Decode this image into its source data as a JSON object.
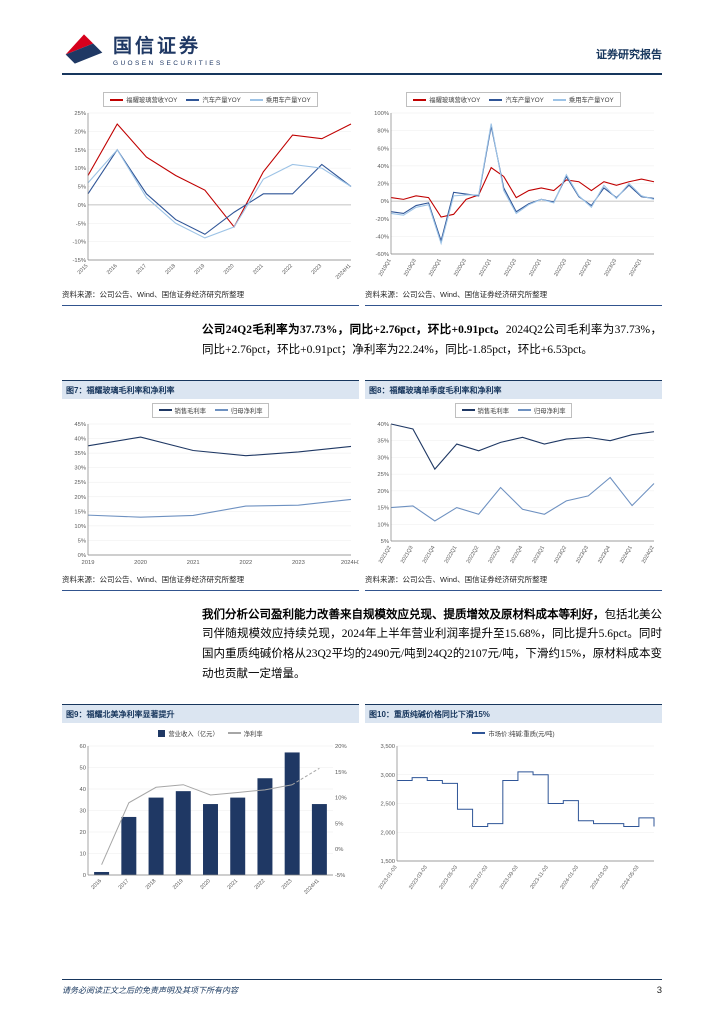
{
  "header": {
    "brand_cn": "国信证券",
    "brand_en": "GUOSEN SECURITIES",
    "report_type": "证券研究报告"
  },
  "source_note": "资料来源：公司公告、Wind、国信证券经济研究所整理",
  "figures": {
    "fig7_title": "图7：福耀玻璃毛利率和净利率",
    "fig8_title": "图8：福耀玻璃单季度毛利率和净利率",
    "fig9_title": "图9：福耀北美净利率显著提升",
    "fig10_title": "图10：重质纯碱价格同比下滑15%"
  },
  "paragraphs": [
    {
      "bold": "公司24Q2毛利率为37.73%，同比+2.76pct，环比+0.91pct。",
      "regular": "2024Q2公司毛利率为37.73%，同比+2.76pct，环比+0.91pct；净利率为22.24%，同比-1.85pct，环比+6.53pct。"
    },
    {
      "bold": "我们分析公司盈利能力改善来自规模效应兑现、提质增效及原材料成本等利好，",
      "regular": "包括北美公司伴随规模效应持续兑现，2024年上半年营业利润率提升至15.68%，同比提升5.6pct。同时国内重质纯碱价格从23Q2平均的2490元/吨到24Q2的2107元/吨，下滑约15%，原材料成本变动也贡献一定增量。"
    }
  ],
  "footer": {
    "disclaimer": "请务必阅读正文之后的免责声明及其项下所有内容",
    "page_number": "3"
  },
  "colors": {
    "brand_navy": "#1f3864",
    "title_bar_bg": "#dbe5f1",
    "red_series": "#c00000",
    "blue_series": "#2f5597",
    "light_blue_series": "#9dc3e6",
    "navy_series": "#1f3864",
    "mid_blue_series": "#6e91c1",
    "gray_series": "#a6a6a6"
  },
  "chart_data": [
    {
      "id": "rev_yoy_annual",
      "type": "line",
      "title": "",
      "legend_box": true,
      "ylim": [
        -15,
        25
      ],
      "ystep": 5,
      "yfmt": "pct",
      "rotate_x": -45,
      "xlab_h": 24,
      "x": [
        "2015",
        "2016",
        "2017",
        "2018",
        "2019",
        "2020",
        "2021",
        "2022",
        "2023",
        "2024H1"
      ],
      "series": [
        {
          "name": "福耀玻璃营收YOY",
          "color": "#c00000",
          "values": [
            8,
            22,
            13,
            8,
            4,
            -6,
            9,
            19,
            18,
            22
          ]
        },
        {
          "name": "汽车产量YOY",
          "color": "#2f5597",
          "values": [
            3,
            15,
            3,
            -4,
            -8,
            -2,
            3,
            3,
            11,
            5
          ]
        },
        {
          "name": "乘用车产量YOY",
          "color": "#9dc3e6",
          "values": [
            6,
            15,
            2,
            -5,
            -9,
            -6,
            7,
            11,
            10,
            5
          ]
        }
      ]
    },
    {
      "id": "rev_yoy_quarterly",
      "type": "line",
      "title": "",
      "legend_box": true,
      "ylim": [
        -60,
        100
      ],
      "ystep": 20,
      "yfmt": "pct",
      "rotate_x": -60,
      "xlab_h": 30,
      "x_tick_every": 2,
      "x": [
        "2019Q1",
        "2019Q2",
        "2019Q3",
        "2019Q4",
        "2020Q1",
        "2020Q2",
        "2020Q3",
        "2020Q4",
        "2021Q1",
        "2021Q2",
        "2021Q3",
        "2021Q4",
        "2022Q1",
        "2022Q2",
        "2022Q3",
        "2022Q4",
        "2023Q1",
        "2023Q2",
        "2023Q3",
        "2023Q4",
        "2024Q1",
        "2024Q2"
      ],
      "series": [
        {
          "name": "福耀玻璃营收YOY",
          "color": "#c00000",
          "values": [
            4,
            2,
            6,
            4,
            -18,
            -15,
            2,
            7,
            38,
            28,
            4,
            12,
            15,
            12,
            24,
            22,
            12,
            22,
            18,
            22,
            25,
            22
          ]
        },
        {
          "name": "汽车产量YOY",
          "color": "#2f5597",
          "values": [
            -12,
            -14,
            -5,
            -2,
            -45,
            10,
            8,
            6,
            85,
            15,
            -12,
            -3,
            2,
            -1,
            28,
            5,
            -5,
            15,
            4,
            18,
            5,
            3
          ]
        },
        {
          "name": "乘用车产量YOY",
          "color": "#9dc3e6",
          "values": [
            -14,
            -16,
            -7,
            -4,
            -48,
            6,
            7,
            7,
            88,
            12,
            -14,
            -4,
            2,
            -2,
            30,
            6,
            -7,
            18,
            3,
            20,
            6,
            2
          ]
        }
      ]
    },
    {
      "id": "fig7",
      "type": "line",
      "title": "福耀玻璃毛利率和净利率",
      "legend_box": true,
      "ylim": [
        0,
        45
      ],
      "ystep": 5,
      "yfmt": "pct",
      "rotate_x": 0,
      "x": [
        "2019",
        "2020",
        "2021",
        "2022",
        "2023",
        "2024H1"
      ],
      "series": [
        {
          "name": "销售毛利率",
          "color": "#1f3864",
          "values": [
            37.5,
            40.5,
            35.9,
            34.1,
            35.4,
            37.3
          ]
        },
        {
          "name": "归母净利率",
          "color": "#6e91c1",
          "values": [
            13.7,
            13.0,
            13.6,
            16.8,
            17.1,
            19.1
          ]
        }
      ]
    },
    {
      "id": "fig8",
      "type": "line",
      "title": "福耀玻璃单季度毛利率和净利率",
      "legend_box": true,
      "ylim": [
        5,
        40
      ],
      "ystep": 5,
      "yfmt": "pct",
      "rotate_x": -60,
      "xlab_h": 28,
      "x": [
        "2021Q2",
        "2021Q3",
        "2021Q4",
        "2022Q1",
        "2022Q2",
        "2022Q3",
        "2022Q4",
        "2023Q1",
        "2023Q2",
        "2023Q3",
        "2023Q4",
        "2024Q1",
        "2024Q2"
      ],
      "series": [
        {
          "name": "销售毛利率",
          "color": "#1f3864",
          "values": [
            40,
            38.5,
            26.5,
            34,
            32,
            34.5,
            36,
            34,
            35.5,
            36,
            35,
            36.8,
            37.7
          ]
        },
        {
          "name": "归母净利率",
          "color": "#6e91c1",
          "values": [
            15,
            15.5,
            11,
            15,
            13,
            21,
            14.5,
            13,
            17,
            18.5,
            24,
            15.6,
            22.2
          ]
        }
      ]
    },
    {
      "id": "fig9",
      "type": "bar-line",
      "title": "福耀北美净利率显著提升",
      "legend_box": false,
      "centered": true,
      "ylim": [
        0,
        60
      ],
      "ystep": 10,
      "yfmt": "num",
      "ylim_right": [
        -5,
        20
      ],
      "ystep_right": 5,
      "rotate_x": -45,
      "xlab_h": 24,
      "x": [
        "2016",
        "2017",
        "2018",
        "2019",
        "2020",
        "2021",
        "2022",
        "2023",
        "2024H1"
      ],
      "series": [
        {
          "name": "营业收入（亿元）",
          "kind": "bar",
          "color": "#1f3864",
          "values": [
            1.4,
            27,
            36,
            39,
            33,
            36,
            45,
            57,
            33
          ]
        },
        {
          "name": "净利率",
          "color": "#a6a6a6",
          "axis": "right",
          "dash_last": true,
          "values": [
            -3,
            9,
            12,
            12.5,
            10.5,
            11,
            11.5,
            12.5,
            15.68
          ]
        }
      ]
    },
    {
      "id": "fig10",
      "type": "step",
      "title": "重质纯碱价格同比下滑15%",
      "legend_box": false,
      "ylim": [
        1500,
        3500
      ],
      "ystep": 500,
      "yfmt": "comma",
      "rotate_x": -55,
      "xlab_h": 38,
      "x_tick_every": 2,
      "x": [
        "2023-01-03",
        "2023-02-03",
        "2023-03-03",
        "2023-04-03",
        "2023-05-03",
        "2023-06-03",
        "2023-07-03",
        "2023-08-03",
        "2023-09-03",
        "2023-10-03",
        "2023-11-03",
        "2023-12-03",
        "2024-01-03",
        "2024-02-03",
        "2024-03-03",
        "2024-04-03",
        "2024-05-03",
        "2024-06-03"
      ],
      "series": [
        {
          "name": "市场价:纯碱:重质(元/吨)",
          "kind": "step",
          "color": "#2f5597",
          "values": [
            2900,
            2950,
            2900,
            2850,
            2400,
            2100,
            2150,
            2900,
            3050,
            3000,
            2500,
            2550,
            2200,
            2150,
            2150,
            2100,
            2250,
            2100
          ]
        }
      ]
    }
  ]
}
